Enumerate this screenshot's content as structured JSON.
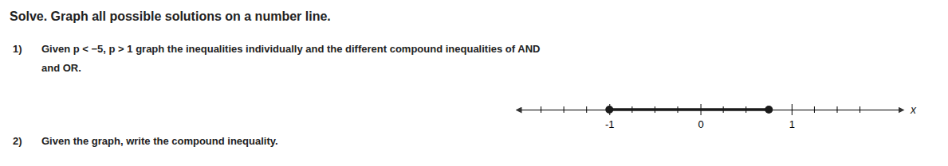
{
  "chart_data": {
    "type": "number_line",
    "title": "Solve. Graph all possible solutions on a number line.",
    "annotations": [
      "1)",
      "Given p < −5, p > 1 graph the inequalities individually and the different compound inequalities of AND",
      "and OR.",
      "2)",
      "Given the graph, write the compound inequality."
    ],
    "xlabel": "x",
    "xlim": [
      -2.0,
      2.2
    ],
    "xticks": [
      -1,
      0,
      1
    ],
    "minor_xticks": [
      -1.75,
      -1.5,
      -1.25,
      -0.75,
      -0.5,
      -0.25,
      0.25,
      0.5,
      0.75,
      1.25,
      1.5,
      1.75
    ],
    "values": [
      -1.0,
      0.75
    ],
    "color": "#1a1a1a"
  }
}
